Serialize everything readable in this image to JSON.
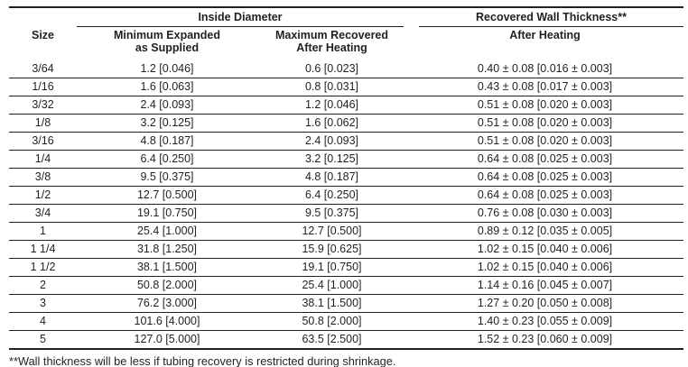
{
  "page": {
    "background": "#ffffff",
    "text_color": "#231f20",
    "footnote": "**Wall thickness will be less if tubing recovery is restricted during shrinkage."
  },
  "table": {
    "groups": [
      {
        "label": "Inside Diameter"
      },
      {
        "label": "Recovered Wall Thickness**"
      }
    ],
    "columns": [
      {
        "line1": "Size",
        "line2": ""
      },
      {
        "line1": "Minimum Expanded",
        "line2": "as Supplied"
      },
      {
        "line1": "Maximum Recovered",
        "line2": "After Heating"
      },
      {
        "line1": "After Heating",
        "line2": ""
      }
    ],
    "rows": [
      {
        "size": "3/64",
        "min_expanded_as_supplied": "1.2 [0.046]",
        "max_recovered_after_heating": "0.6 [0.023]",
        "recovered_wall_thickness_after_heating": "0.40 ± 0.08 [0.016 ± 0.003]"
      },
      {
        "size": "1/16",
        "min_expanded_as_supplied": "1.6 [0.063]",
        "max_recovered_after_heating": "0.8 [0.031]",
        "recovered_wall_thickness_after_heating": "0.43 ± 0.08 [0.017 ± 0.003]"
      },
      {
        "size": "3/32",
        "min_expanded_as_supplied": "2.4 [0.093]",
        "max_recovered_after_heating": "1.2 [0.046]",
        "recovered_wall_thickness_after_heating": "0.51 ± 0.08 [0.020 ± 0.003]"
      },
      {
        "size": "1/8",
        "min_expanded_as_supplied": "3.2 [0.125]",
        "max_recovered_after_heating": "1.6 [0.062]",
        "recovered_wall_thickness_after_heating": "0.51 ± 0.08 [0.020 ± 0.003]"
      },
      {
        "size": "3/16",
        "min_expanded_as_supplied": "4.8 [0.187]",
        "max_recovered_after_heating": "2.4 [0.093]",
        "recovered_wall_thickness_after_heating": "0.51 ± 0.08 [0.020 ± 0.003]"
      },
      {
        "size": "1/4",
        "min_expanded_as_supplied": "6.4 [0.250]",
        "max_recovered_after_heating": "3.2 [0.125]",
        "recovered_wall_thickness_after_heating": "0.64 ± 0.08 [0.025 ± 0.003]"
      },
      {
        "size": "3/8",
        "min_expanded_as_supplied": "9.5 [0.375]",
        "max_recovered_after_heating": "4.8 [0.187]",
        "recovered_wall_thickness_after_heating": "0.64 ± 0.08 [0.025 ± 0.003]"
      },
      {
        "size": "1/2",
        "min_expanded_as_supplied": "12.7 [0.500]",
        "max_recovered_after_heating": "6.4 [0.250]",
        "recovered_wall_thickness_after_heating": "0.64 ± 0.08 [0.025 ± 0.003]"
      },
      {
        "size": "3/4",
        "min_expanded_as_supplied": "19.1 [0.750]",
        "max_recovered_after_heating": "9.5 [0.375]",
        "recovered_wall_thickness_after_heating": "0.76 ± 0.08 [0.030 ± 0.003]"
      },
      {
        "size": "1",
        "min_expanded_as_supplied": "25.4 [1.000]",
        "max_recovered_after_heating": "12.7 [0.500]",
        "recovered_wall_thickness_after_heating": "0.89 ± 0.12 [0.035 ± 0.005]"
      },
      {
        "size": "1 1/4",
        "min_expanded_as_supplied": "31.8 [1.250]",
        "max_recovered_after_heating": "15.9 [0.625]",
        "recovered_wall_thickness_after_heating": "1.02 ± 0.15 [0.040 ± 0.006]"
      },
      {
        "size": "1 1/2",
        "min_expanded_as_supplied": "38.1 [1.500]",
        "max_recovered_after_heating": "19.1 [0.750]",
        "recovered_wall_thickness_after_heating": "1.02 ± 0.15 [0.040 ± 0.006]"
      },
      {
        "size": "2",
        "min_expanded_as_supplied": "50.8 [2.000]",
        "max_recovered_after_heating": "25.4 [1.000]",
        "recovered_wall_thickness_after_heating": "1.14 ± 0.16 [0.045 ± 0.007]"
      },
      {
        "size": "3",
        "min_expanded_as_supplied": "76.2 [3.000]",
        "max_recovered_after_heating": "38.1 [1.500]",
        "recovered_wall_thickness_after_heating": "1.27 ± 0.20 [0.050 ± 0.008]"
      },
      {
        "size": "4",
        "min_expanded_as_supplied": "101.6 [4.000]",
        "max_recovered_after_heating": "50.8 [2.000]",
        "recovered_wall_thickness_after_heating": "1.40 ± 0.23 [0.055 ± 0.009]"
      },
      {
        "size": "5",
        "min_expanded_as_supplied": "127.0 [5.000]",
        "max_recovered_after_heating": "63.5 [2.500]",
        "recovered_wall_thickness_after_heating": "1.52 ± 0.23 [0.060 ± 0.009]"
      }
    ]
  }
}
